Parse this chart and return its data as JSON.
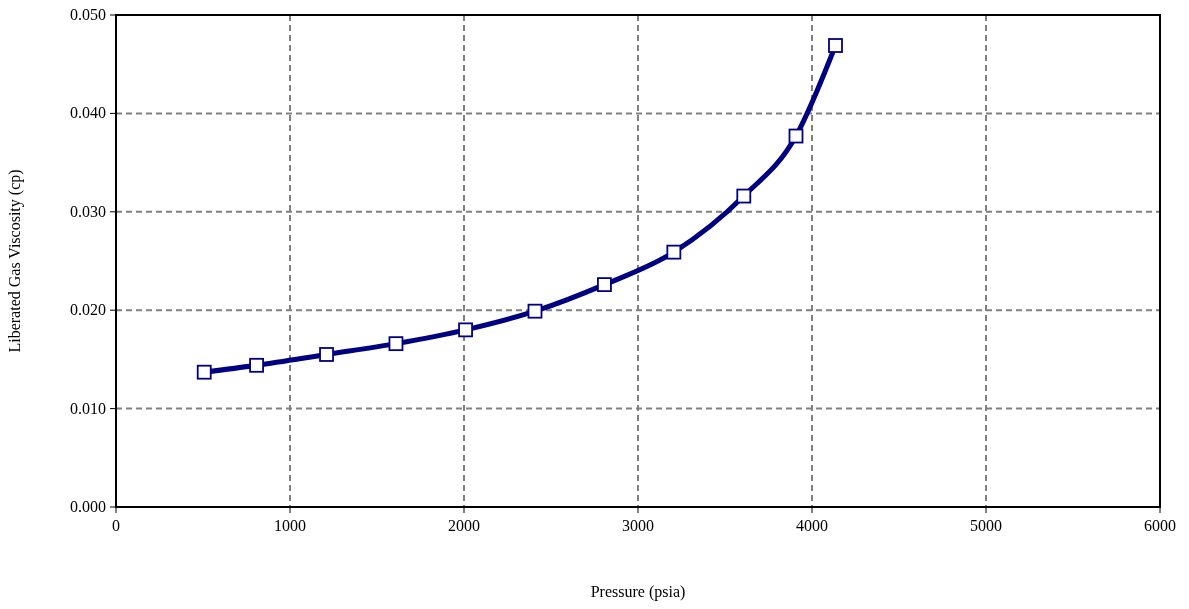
{
  "chart_data": {
    "type": "line",
    "xlabel": "Pressure (psia)",
    "ylabel": "Liberated Gas Viscosity (cp)",
    "x": [
      507,
      808,
      1210,
      1609,
      2009,
      2408,
      2807,
      3206,
      3608,
      3908,
      4135
    ],
    "series": [
      {
        "color": "#000080",
        "values": [
          0.0137,
          0.0144,
          0.0155,
          0.0166,
          0.018,
          0.0199,
          0.0226,
          0.0259,
          0.0316,
          0.0377,
          0.0469
        ]
      }
    ],
    "xlim": [
      0,
      6000
    ],
    "xticks": [
      0,
      1000,
      2000,
      3000,
      4000,
      5000,
      6000
    ],
    "ylim": [
      0,
      0.05
    ],
    "yticks": [
      {
        "value": 0,
        "label": "0.000"
      },
      {
        "value": 0.01,
        "label": "0.010"
      },
      {
        "value": 0.02,
        "label": "0.020"
      },
      {
        "value": 0.03,
        "label": "0.030"
      },
      {
        "value": 0.04,
        "label": "0.040"
      },
      {
        "value": 0.05,
        "label": "0.050"
      }
    ],
    "grid": true,
    "marker": "square",
    "line_style": "solid"
  }
}
